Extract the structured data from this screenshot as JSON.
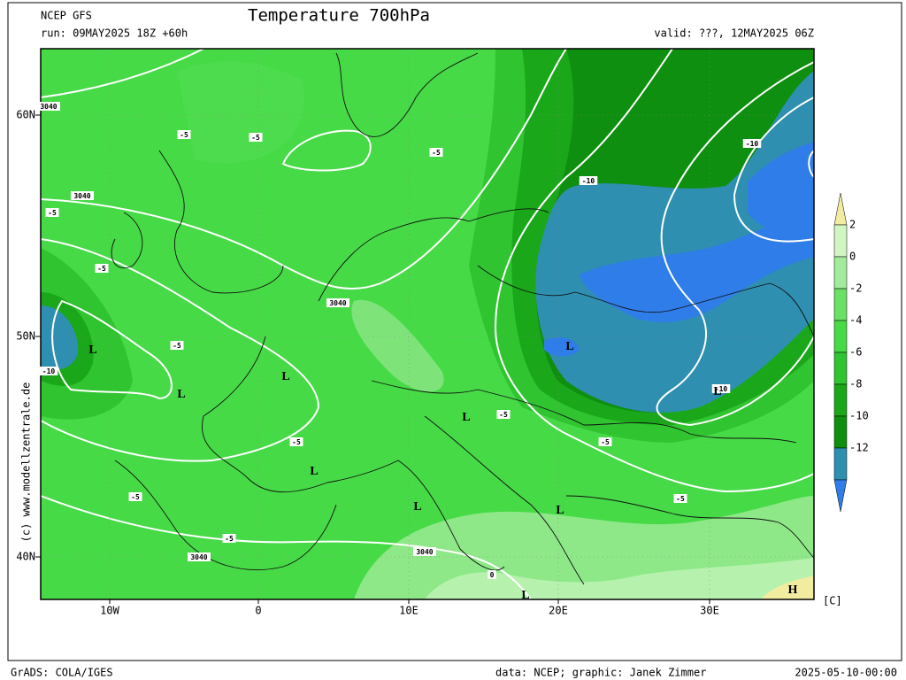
{
  "header": {
    "model": "NCEP GFS",
    "title": "Temperature 700hPa",
    "run": "run: 09MAY2025 18Z +60h",
    "valid": "valid: ???, 12MAY2025 06Z"
  },
  "map": {
    "lat_labels": [
      "60N",
      "50N",
      "40N"
    ],
    "lon_labels": [
      "10W",
      "0",
      "10E",
      "20E",
      "30E"
    ],
    "temperature_labels": [
      "-5",
      "-5",
      "-5",
      "-5",
      "-5",
      "-5",
      "-5",
      "-5",
      "-5",
      "-5",
      "-5",
      "-5",
      "-10",
      "-10",
      "-10",
      "-10",
      "0"
    ],
    "height_labels": [
      "3040",
      "3040",
      "3040",
      "3040",
      "3040"
    ],
    "pressure_centers": [
      "L",
      "L",
      "L",
      "L",
      "L",
      "L",
      "L",
      "L",
      "L",
      "L",
      "H"
    ]
  },
  "colorbar": {
    "labels": [
      "2",
      "0",
      "-2",
      "-4",
      "-6",
      "-8",
      "-10",
      "-12"
    ],
    "unit": "[C]"
  },
  "credit": "(c) www.modellzentrale.de",
  "footer": {
    "left": "GrADS: COLA/IGES",
    "center": "data: NCEP; graphic: Janek Zimmer",
    "right": "2025-05-10-00:00"
  }
}
